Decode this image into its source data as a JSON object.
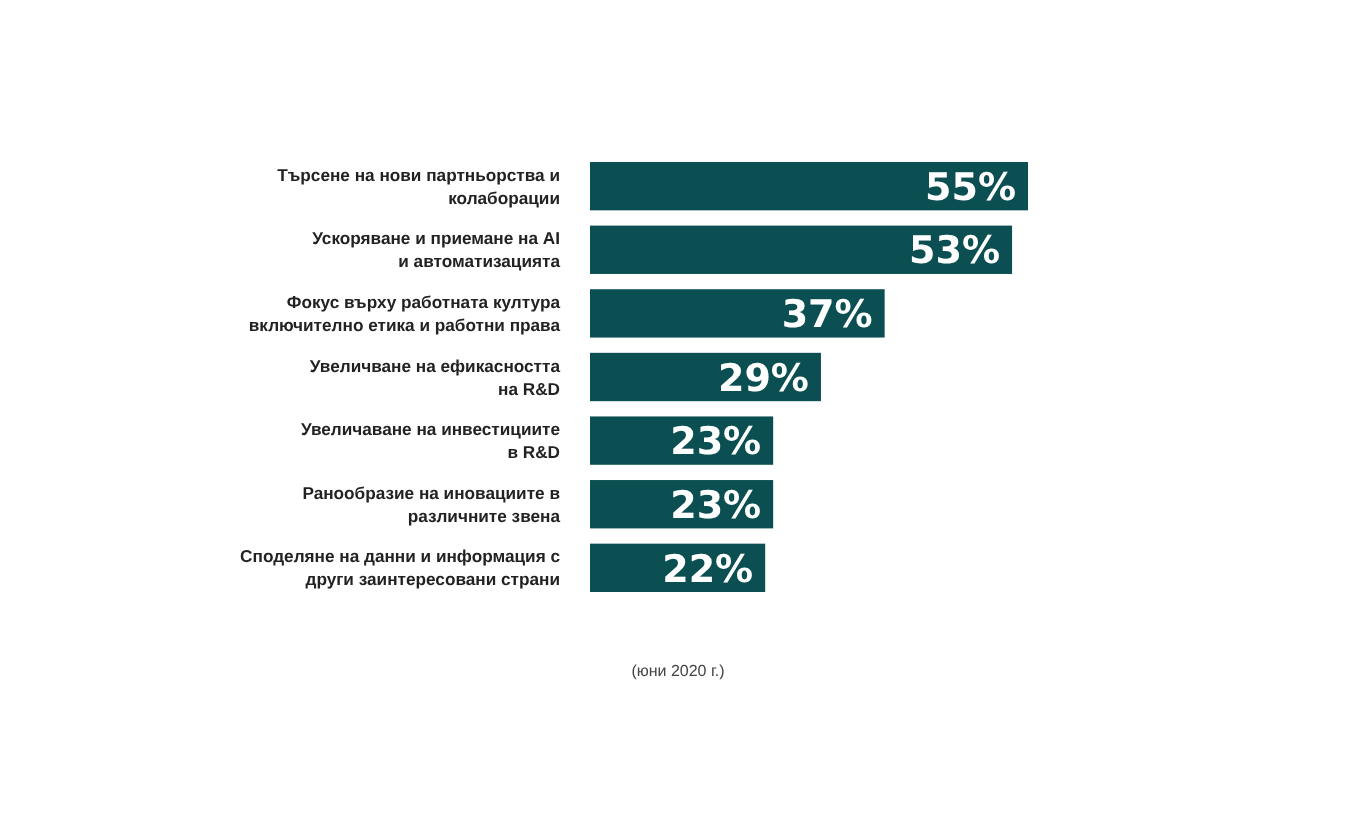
{
  "chart_data": {
    "type": "bar",
    "orientation": "horizontal",
    "categories": [
      "Търсене на нови партньорства и\nколаборации",
      "Ускоряване и приемане на AI\nи автоматизацията",
      "Фокус върху работната култура\nвключително етика и работни права",
      "Увеличване на ефикасността\nна R&D",
      "Увеличаване на инвестициите\nв R&D",
      "Ранообразие на иновациите в\nразличните звена",
      "Споделяне на данни и информация с\nдруги заинтересовани страни"
    ],
    "values": [
      55,
      53,
      37,
      29,
      23,
      23,
      22
    ],
    "color": "#0b4f52",
    "data_labels": true,
    "value_labels": [
      "55%",
      "53%",
      "37%",
      "29%",
      "23%",
      "23%",
      "22%"
    ],
    "annotations": [
      "(юни 2020 г.)"
    ]
  }
}
